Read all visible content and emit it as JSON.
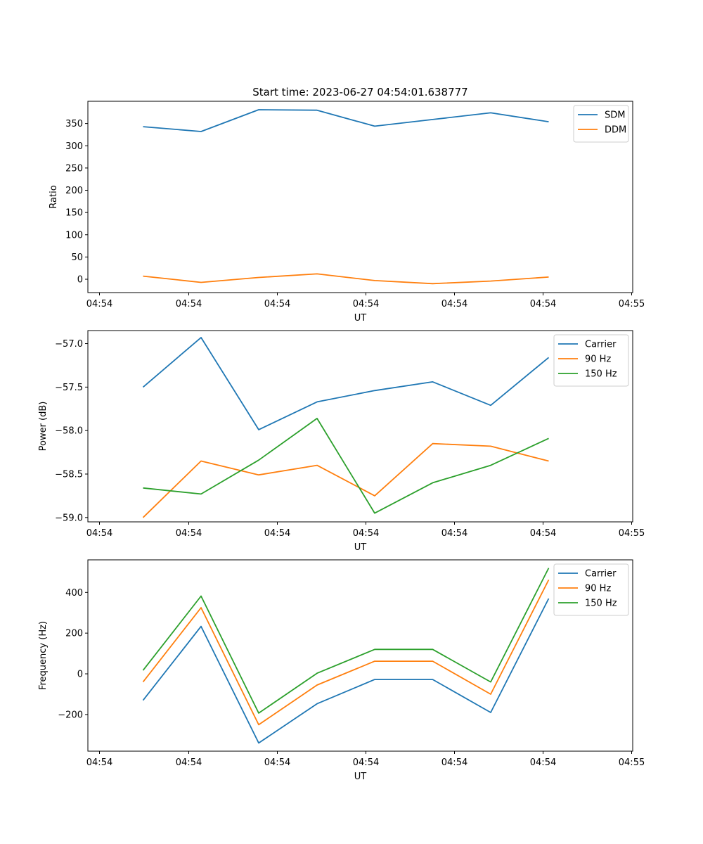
{
  "figure": {
    "title": "Start time: 2023-06-27 04:54:01.638777"
  },
  "chart_data": [
    {
      "type": "line",
      "title": "Start time: 2023-06-27 04:54:01.638777",
      "xlabel": "UT",
      "ylabel": "Ratio",
      "x_tick_labels": [
        "04:54",
        "04:54",
        "04:54",
        "04:54",
        "04:54",
        "04:54",
        "04:54",
        "04:55"
      ],
      "y_ticks": [
        0,
        50,
        100,
        150,
        200,
        250,
        300,
        350
      ],
      "y_tick_labels": [
        "0",
        "50",
        "100",
        "150",
        "200",
        "250",
        "300",
        "350"
      ],
      "ylim": [
        -30,
        400
      ],
      "grid": false,
      "legend": "top-right",
      "series": [
        {
          "name": "SDM",
          "color": "#1f77b4",
          "values": [
            343,
            332,
            381,
            380,
            344,
            359,
            374,
            354
          ]
        },
        {
          "name": "DDM",
          "color": "#ff7f0e",
          "values": [
            7,
            -7,
            4,
            12,
            -3,
            -10,
            -4,
            5
          ]
        }
      ]
    },
    {
      "type": "line",
      "xlabel": "UT",
      "ylabel": "Power (dB)",
      "x_tick_labels": [
        "04:54",
        "04:54",
        "04:54",
        "04:54",
        "04:54",
        "04:54",
        "04:54",
        "04:55"
      ],
      "y_ticks": [
        -59.0,
        -58.5,
        -58.0,
        -57.5,
        -57.0
      ],
      "y_tick_labels": [
        "−59.0",
        "−58.5",
        "−58.0",
        "−57.5",
        "−57.0"
      ],
      "ylim": [
        -59.05,
        -56.85
      ],
      "grid": false,
      "legend": "top-right",
      "series": [
        {
          "name": "Carrier",
          "color": "#1f77b4",
          "values": [
            -57.5,
            -56.93,
            -57.99,
            -57.67,
            -57.54,
            -57.44,
            -57.71,
            -57.16
          ]
        },
        {
          "name": "90 Hz",
          "color": "#ff7f0e",
          "values": [
            -59.0,
            -58.35,
            -58.51,
            -58.4,
            -58.75,
            -58.15,
            -58.18,
            -58.35
          ]
        },
        {
          "name": "150 Hz",
          "color": "#2ca02c",
          "values": [
            -58.66,
            -58.73,
            -58.34,
            -57.86,
            -58.95,
            -58.6,
            -58.4,
            -58.09
          ]
        }
      ]
    },
    {
      "type": "line",
      "xlabel": "UT",
      "ylabel": "Frequency (Hz)",
      "x_tick_labels": [
        "04:54",
        "04:54",
        "04:54",
        "04:54",
        "04:54",
        "04:54",
        "04:54",
        "04:55"
      ],
      "y_ticks": [
        -200,
        0,
        200,
        400
      ],
      "y_tick_labels": [
        "−200",
        "0",
        "200",
        "400"
      ],
      "ylim": [
        -380,
        560
      ],
      "grid": false,
      "legend": "top-right",
      "series": [
        {
          "name": "Carrier",
          "color": "#1f77b4",
          "values": [
            -130,
            233,
            -340,
            -147,
            -28,
            -28,
            -190,
            370
          ]
        },
        {
          "name": "90 Hz",
          "color": "#ff7f0e",
          "values": [
            -40,
            325,
            -250,
            -55,
            62,
            62,
            -100,
            462
          ]
        },
        {
          "name": "150 Hz",
          "color": "#2ca02c",
          "values": [
            17,
            382,
            -193,
            3,
            120,
            120,
            -40,
            520
          ]
        }
      ]
    }
  ]
}
